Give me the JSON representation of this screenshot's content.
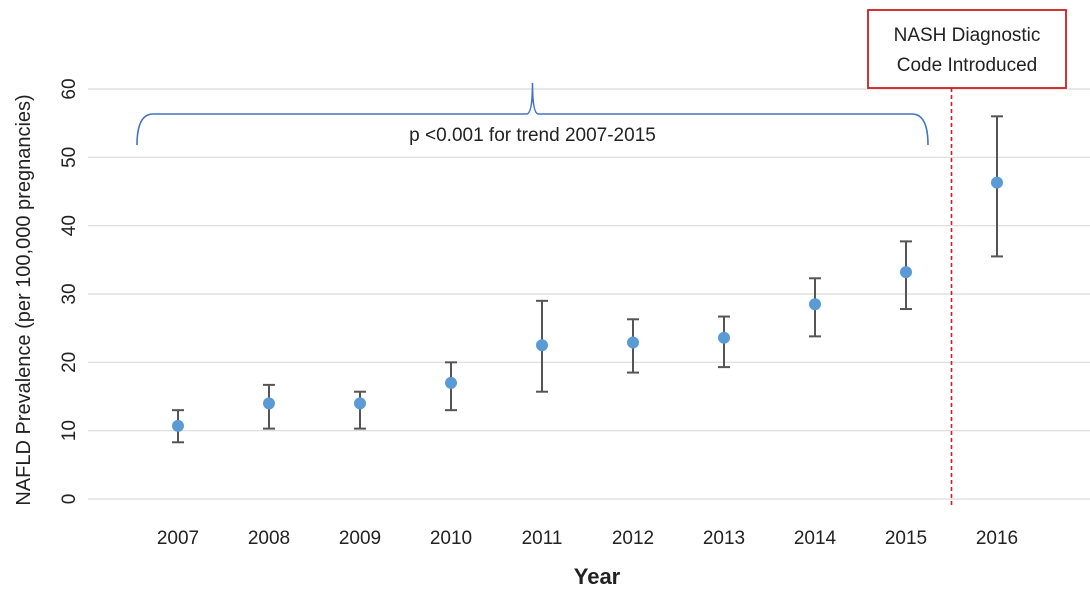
{
  "chart_data": {
    "type": "scatter",
    "xlabel": "Year",
    "ylabel": "NAFLD Prevalence (per 100,000 pregnancies)",
    "ylim": [
      0,
      60
    ],
    "yticks": [
      0,
      10,
      20,
      30,
      40,
      50,
      60
    ],
    "grid": true,
    "categories": [
      "2007",
      "2008",
      "2009",
      "2010",
      "2011",
      "2012",
      "2013",
      "2014",
      "2015",
      "2016"
    ],
    "series": [
      {
        "values": [
          10.7,
          14.0,
          14.0,
          17.0,
          22.5,
          22.9,
          23.6,
          28.5,
          33.2,
          46.3
        ],
        "error_low": [
          8.3,
          10.3,
          10.3,
          13.0,
          15.7,
          18.5,
          19.3,
          23.8,
          27.8,
          35.5
        ],
        "error_high": [
          13.0,
          16.7,
          15.7,
          20.0,
          29.0,
          26.3,
          26.7,
          32.3,
          37.7,
          56.0
        ],
        "color": "#5b9bd5"
      }
    ],
    "annotations": {
      "trend_text": "p <0.001 for trend 2007-2015",
      "trend_range": [
        "2007",
        "2015"
      ],
      "marker_text_line1": "NASH Diagnostic",
      "marker_text_line2": "Code Introduced",
      "marker_between": [
        "2015",
        "2016"
      ],
      "marker_color": "#cc1f1f",
      "bracket_color": "#4472c4"
    },
    "colors": {
      "grid": "#d9d9d9",
      "error_bar": "#555555"
    }
  }
}
